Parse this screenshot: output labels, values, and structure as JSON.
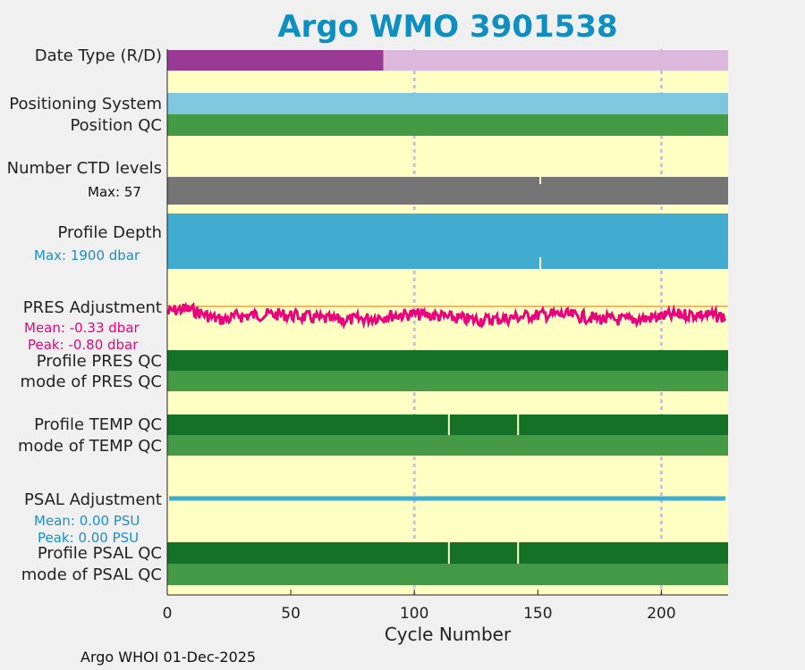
{
  "title": "Argo WMO 3901538",
  "footer": "Argo WHOI 01-Dec-2025",
  "colors": {
    "plot_bg": "#ffffc4",
    "date_realtime": "#9a3a94",
    "date_delayed": "#dcb8dc",
    "positioning": "#7fc6df",
    "qc_good": "#459a45",
    "qc_dark": "#157028",
    "ctd": "#757575",
    "depth": "#41abd0",
    "pres_line": "#e8047f",
    "pres_ref": "#f4b860",
    "psal_line": "#41abd0",
    "title": "#0f8fbf"
  },
  "rows": {
    "date_type": "Date Type (R/D)",
    "positioning": "Positioning System",
    "position_qc": "Position QC",
    "ctd_levels": "Number CTD levels",
    "ctd_max": "Max: 57",
    "profile_depth": "Profile Depth",
    "depth_max": "Max: 1900 dbar",
    "pres_adj": "PRES Adjustment",
    "pres_mean": "Mean: -0.33 dbar",
    "pres_peak": "Peak: -0.80 dbar",
    "profile_pres_qc": "Profile PRES QC",
    "mode_pres_qc": "mode of PRES QC",
    "profile_temp_qc": "Profile TEMP QC",
    "mode_temp_qc": "mode of TEMP QC",
    "psal_adj": "PSAL Adjustment",
    "psal_mean": "Mean: 0.00 PSU",
    "psal_peak": "Peak: 0.00 PSU",
    "profile_psal_qc": "Profile PSAL QC",
    "mode_psal_qc": "mode of PSAL QC"
  },
  "chart_data": {
    "type": "timeline",
    "xlabel": "Cycle Number",
    "xlim": [
      0,
      227
    ],
    "xticks": [
      0,
      50,
      100,
      150,
      200
    ],
    "gridlines_x": [
      100,
      200
    ],
    "date_type": {
      "realtime_until_cycle": 87.5,
      "delayed_after": 87.5
    },
    "ctd_levels_max": 57,
    "ctd_missing_cycles": [
      151
    ],
    "profile_depth_max_dbar": 1900,
    "depth_missing_cycles": [
      151
    ],
    "pres_adjustment": {
      "mean_dbar": -0.33,
      "peak_dbar": -0.8
    },
    "psal_adjustment": {
      "mean_psu": 0.0,
      "peak_psu": 0.0
    },
    "temp_qc_flagged_cycles": [
      114,
      142
    ],
    "psal_qc_flagged_cycles": [
      114,
      142
    ]
  }
}
